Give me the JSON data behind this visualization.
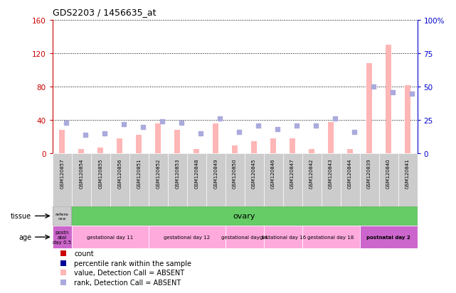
{
  "title": "GDS2203 / 1456635_at",
  "samples": [
    "GSM120857",
    "GSM120854",
    "GSM120855",
    "GSM120856",
    "GSM120851",
    "GSM120852",
    "GSM120853",
    "GSM120848",
    "GSM120849",
    "GSM120850",
    "GSM120845",
    "GSM120846",
    "GSM120847",
    "GSM120842",
    "GSM120843",
    "GSM120844",
    "GSM120839",
    "GSM120840",
    "GSM120841"
  ],
  "bar_values": [
    28,
    5,
    7,
    18,
    22,
    36,
    28,
    5,
    36,
    10,
    15,
    18,
    18,
    5,
    38,
    5,
    108,
    130,
    82
  ],
  "rank_values": [
    23,
    14,
    15,
    22,
    20,
    24,
    23,
    15,
    26,
    16,
    21,
    18,
    21,
    21,
    26,
    16,
    50,
    46,
    45
  ],
  "left_ylim": [
    0,
    160
  ],
  "left_yticks": [
    0,
    40,
    80,
    120,
    160
  ],
  "right_ylim": [
    0,
    100
  ],
  "right_yticks": [
    0,
    25,
    50,
    75,
    100
  ],
  "right_yticklabels": [
    "0",
    "25",
    "50",
    "75",
    "100%"
  ],
  "bar_color": "#FFB6B6",
  "rank_color": "#AAAADD",
  "left_tick_color": "#CC0000",
  "right_tick_color": "#0000CC",
  "grid_color": "black",
  "bg_color": "white",
  "tissue_label": "tissue",
  "age_label": "age",
  "tissue_reference_label": "refere\nnce",
  "tissue_ovary_label": "ovary",
  "tissue_reference_color": "#CCCCCC",
  "tissue_ovary_color": "#66CC66",
  "xlabel_box_color": "#CCCCCC",
  "age_groups": [
    {
      "label": "postn\natal\nday 0.5",
      "start": 0,
      "end": 1,
      "color": "#CC66CC"
    },
    {
      "label": "gestational day 11",
      "start": 1,
      "end": 5,
      "color": "#FFAADD"
    },
    {
      "label": "gestational day 12",
      "start": 5,
      "end": 9,
      "color": "#FFAADD"
    },
    {
      "label": "gestational day 14",
      "start": 9,
      "end": 11,
      "color": "#FFAADD"
    },
    {
      "label": "gestational day 16",
      "start": 11,
      "end": 13,
      "color": "#FFAADD"
    },
    {
      "label": "gestational day 18",
      "start": 13,
      "end": 16,
      "color": "#FFAADD"
    },
    {
      "label": "postnatal day 2",
      "start": 16,
      "end": 19,
      "color": "#CC66CC"
    }
  ],
  "legend_items": [
    {
      "label": "count",
      "color": "#CC0000"
    },
    {
      "label": "percentile rank within the sample",
      "color": "#000099"
    },
    {
      "label": "value, Detection Call = ABSENT",
      "color": "#FFB6B6"
    },
    {
      "label": "rank, Detection Call = ABSENT",
      "color": "#AAAADD"
    }
  ]
}
